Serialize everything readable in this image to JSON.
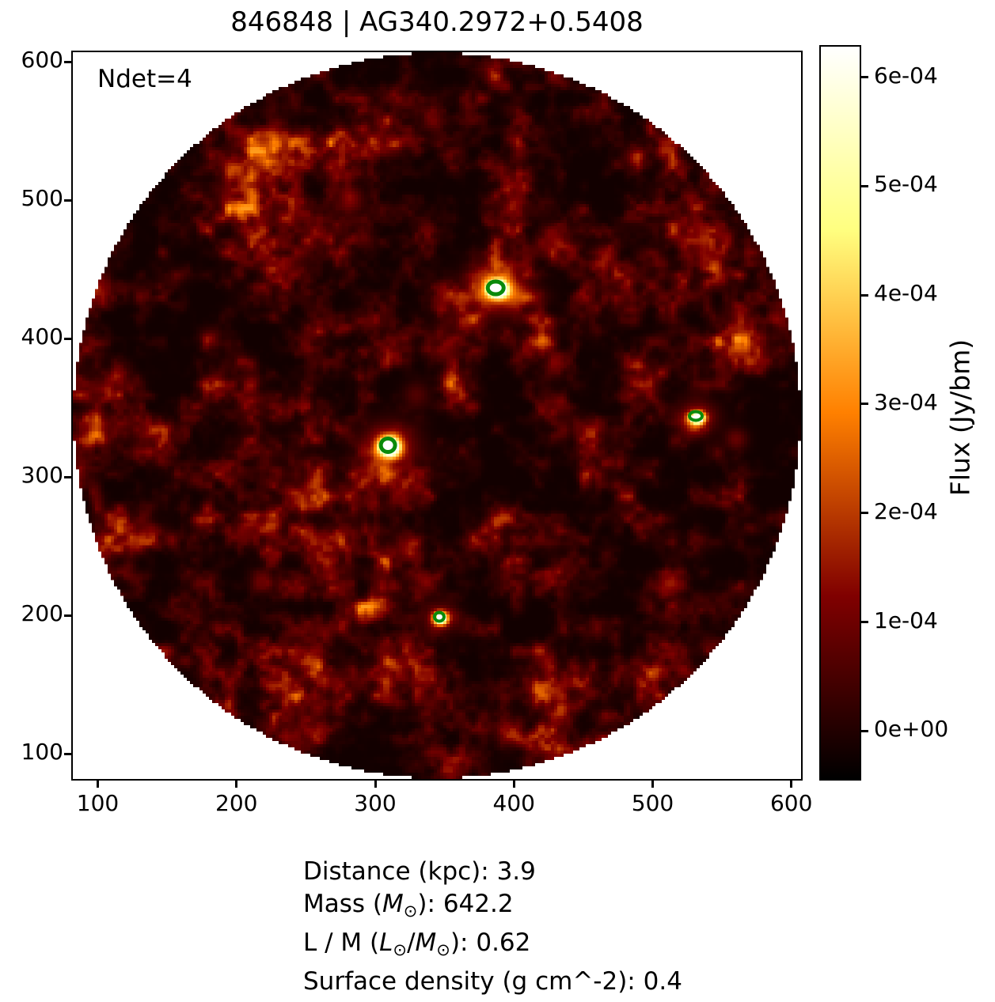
{
  "figure": {
    "title": "846848 | AG340.2972+0.5408",
    "annotation": "Ndet=4"
  },
  "chart_data": {
    "type": "heatmap",
    "title": "846848 | AG340.2972+0.5408",
    "annotation": "Ndet=4",
    "n_detections": 4,
    "xlim": [
      82,
      607
    ],
    "ylim": [
      82,
      607
    ],
    "x_ticks": [
      100,
      200,
      300,
      400,
      500,
      600
    ],
    "y_ticks": [
      100,
      200,
      300,
      400,
      500,
      600
    ],
    "grid": false,
    "colormap": "afmhot",
    "background_outside_mask": "#ffffff",
    "mask_circle": {
      "cx": 344.5,
      "cy": 344.5,
      "radius": 262
    },
    "colorbar": {
      "label": "Flux (Jy/bm)",
      "tick_labels": [
        "6e-04",
        "5e-04",
        "4e-04",
        "3e-04",
        "2e-04",
        "1e-04",
        "0e+00"
      ],
      "tick_values": [
        0.0006,
        0.0005,
        0.0004,
        0.0003,
        0.0002,
        0.0001,
        0.0
      ],
      "vmin": -4.4e-05,
      "vmax": 0.000628,
      "position": "right"
    },
    "detections": [
      {
        "x": 387,
        "y": 437,
        "rx": 7.0,
        "ry": 6.0
      },
      {
        "x": 309,
        "y": 323,
        "rx": 6.5,
        "ry": 6.3
      },
      {
        "x": 531,
        "y": 344,
        "rx": 5.7,
        "ry": 4.3
      },
      {
        "x": 346,
        "y": 199,
        "rx": 4.6,
        "ry": 4.3
      }
    ]
  },
  "footer": {
    "lines": [
      {
        "segments": [
          {
            "t": "Distance (kpc): 3.9"
          }
        ]
      },
      {
        "segments": [
          {
            "t": "Mass ("
          },
          {
            "t": "M",
            "style": "i"
          },
          {
            "t": "⊙",
            "style": "sub"
          },
          {
            "t": "): 642.2"
          }
        ]
      },
      {
        "segments": [
          {
            "t": "L / M ("
          },
          {
            "t": "L",
            "style": "i"
          },
          {
            "t": "⊙",
            "style": "sub"
          },
          {
            "t": "/"
          },
          {
            "t": "M",
            "style": "i"
          },
          {
            "t": "⊙",
            "style": "sub"
          },
          {
            "t": "): 0.62"
          }
        ]
      },
      {
        "segments": [
          {
            "t": "Surface density (g cm^-2): 0.4"
          }
        ]
      }
    ]
  },
  "colors": {
    "marker_green": "#0a8a0a",
    "frame": "#000000",
    "page_background": "#ffffff"
  }
}
